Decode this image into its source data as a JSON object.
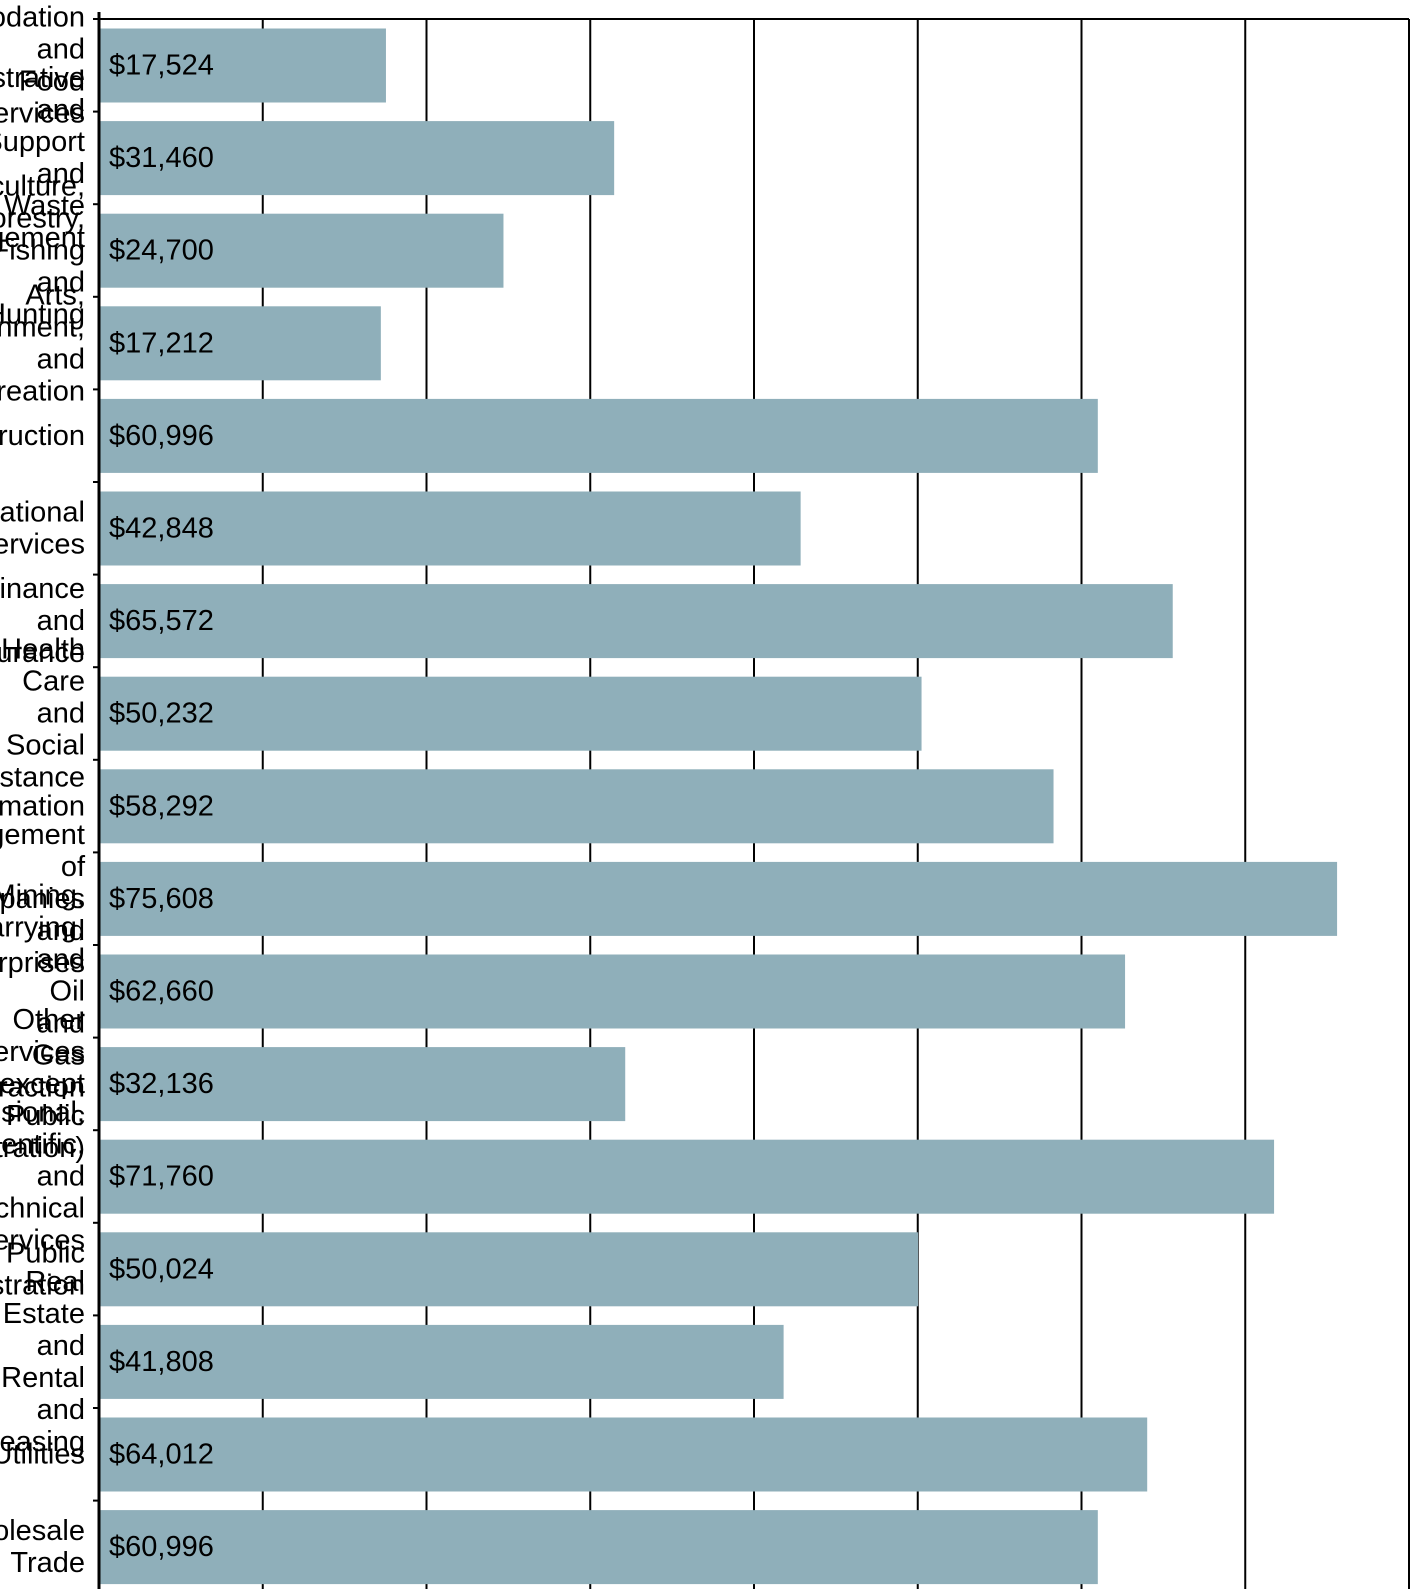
{
  "chart_data": {
    "type": "bar",
    "orientation": "horizontal",
    "categories": [
      "Accommodation and Food Services",
      "Administrative and Support and Waste Management",
      "Agriculture, Forestry, Fishing and Hunting",
      "Arts, Entertainment, and Recreation",
      "Construction",
      "Educational Services",
      "Finance and Insurance",
      "Health Care and Social Assistance",
      "Information",
      "Management of Companies and Enterprises",
      "Mining, Quarrying, and Oil and Gas Extraction",
      "Other Services (except Public Administration)",
      "Professional, Scientific, and Technical Services",
      "Public Administration",
      "Real Estate and Rental and Leasing",
      "Utilities",
      "Wholesale Trade"
    ],
    "values": [
      17524,
      31460,
      24700,
      17212,
      60996,
      42848,
      65572,
      50232,
      58292,
      75608,
      62660,
      32136,
      71760,
      50024,
      41808,
      64012,
      60996
    ],
    "value_labels": [
      "$17,524",
      "$31,460",
      "$24,700",
      "$17,212",
      "$60,996",
      "$42,848",
      "$65,572",
      "$50,232",
      "$58,292",
      "$75,608",
      "$62,660",
      "$32,136",
      "$71,760",
      "$50,024",
      "$41,808",
      "$64,012",
      "$60,996"
    ],
    "xlim": [
      0,
      80000
    ],
    "x_gridline_step": 10000,
    "grid": true,
    "bar_color": "#8fafba",
    "axis_color": "#000000",
    "title": "",
    "xlabel": "",
    "ylabel": ""
  }
}
